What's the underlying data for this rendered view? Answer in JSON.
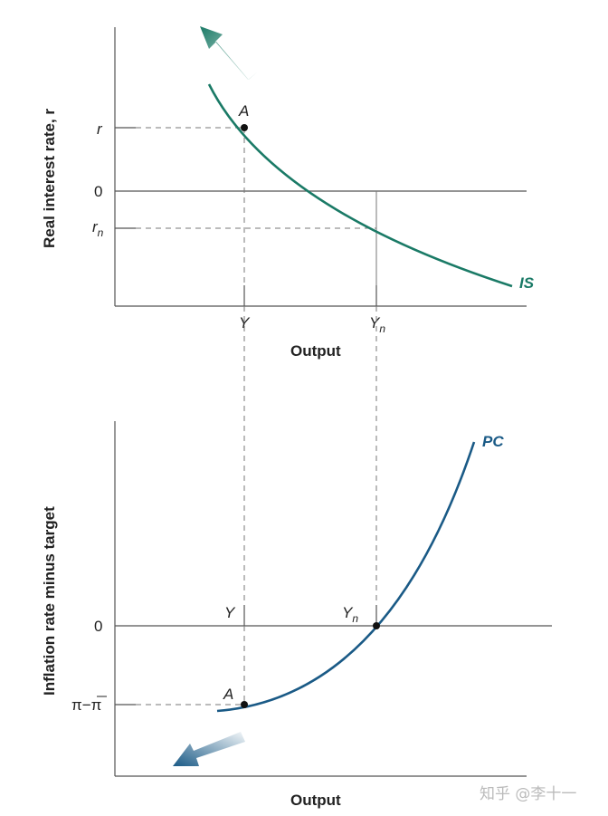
{
  "top_panel": {
    "y_axis_label": "Real interest rate, r",
    "x_axis_label": "Output",
    "y_ticks": {
      "r": "r",
      "zero": "0",
      "rn_main": "r",
      "rn_sub": "n"
    },
    "x_ticks": {
      "Y": "Y",
      "Yn_main": "Y",
      "Yn_sub": "n"
    },
    "curve_label": "IS",
    "point_label": "A"
  },
  "bottom_panel": {
    "y_axis_label": "Inflation rate minus target",
    "x_axis_label": "Output",
    "y_ticks": {
      "zero": "0",
      "gap": "π−π"
    },
    "x_ticks": {
      "Y": "Y",
      "Yn_main": "Y",
      "Yn_sub": "n"
    },
    "curve_label": "PC",
    "point_label": "A"
  },
  "colors": {
    "is_curve": "#1a7a66",
    "pc_curve": "#1a5a86",
    "axis": "#555555",
    "dashed": "#777777"
  },
  "watermark": "知乎 @李十一"
}
